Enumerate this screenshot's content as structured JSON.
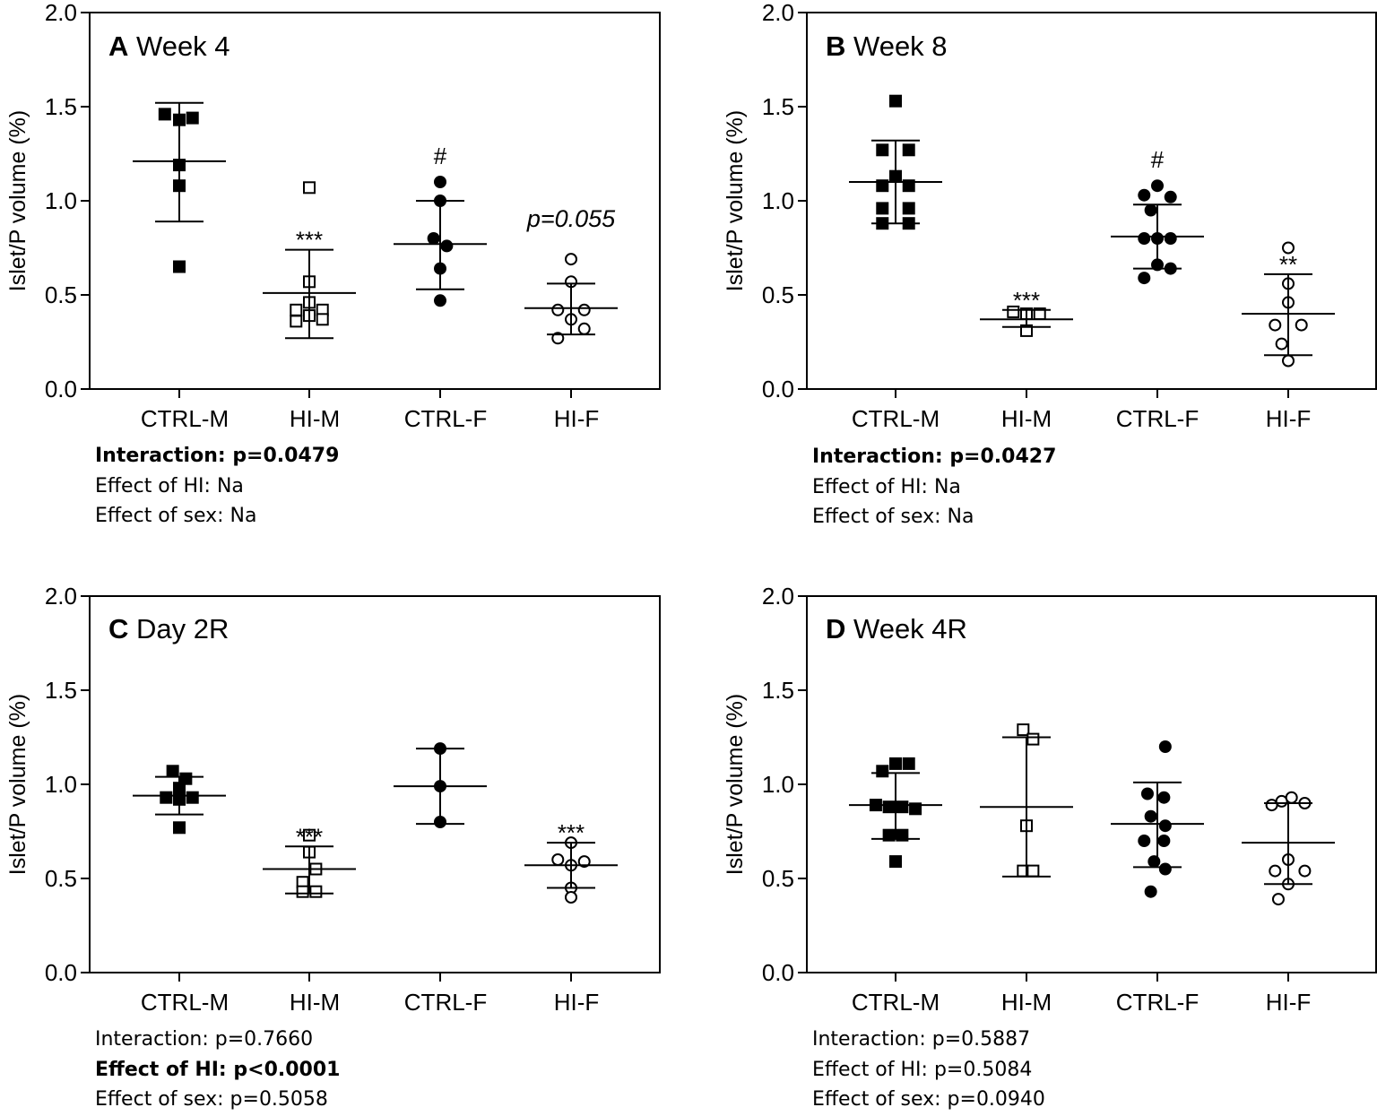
{
  "chart_data": [
    {
      "panel": "A",
      "type": "scatter",
      "title": "Week 4",
      "ylabel": "Islet/P volume (%)",
      "ylim": [
        0,
        2.0
      ],
      "yticks": [
        "0.0",
        "0.5",
        "1.0",
        "1.5",
        "2.0"
      ],
      "categories": [
        "CTRL-M",
        "HI-M",
        "CTRL-F",
        "HI-F"
      ],
      "series": [
        {
          "name": "CTRL-M",
          "marker": "square-filled",
          "points": [
            [
              -0.22,
              1.46
            ],
            [
              0,
              1.43
            ],
            [
              0.2,
              1.44
            ],
            [
              0,
              1.19
            ],
            [
              0,
              1.08
            ],
            [
              0,
              0.65
            ]
          ],
          "mean": 1.21,
          "sd_low": 0.89,
          "sd_high": 1.52,
          "annotation": ""
        },
        {
          "name": "HI-M",
          "marker": "square-open",
          "points": [
            [
              0,
              1.07
            ],
            [
              0,
              0.57
            ],
            [
              0,
              0.46
            ],
            [
              -0.2,
              0.42
            ],
            [
              0.2,
              0.42
            ],
            [
              -0.2,
              0.36
            ],
            [
              0,
              0.39
            ],
            [
              0.2,
              0.37
            ]
          ],
          "mean": 0.51,
          "sd_low": 0.27,
          "sd_high": 0.74,
          "annotation": "***"
        },
        {
          "name": "CTRL-F",
          "marker": "circle-filled",
          "points": [
            [
              0,
              1.1
            ],
            [
              0,
              1.0
            ],
            [
              -0.1,
              0.8
            ],
            [
              0.1,
              0.76
            ],
            [
              0,
              0.64
            ],
            [
              0,
              0.47
            ]
          ],
          "mean": 0.77,
          "sd_low": 0.53,
          "sd_high": 1.0,
          "annotation": "#"
        },
        {
          "name": "HI-F",
          "marker": "circle-open",
          "points": [
            [
              0,
              0.69
            ],
            [
              0,
              0.57
            ],
            [
              -0.2,
              0.42
            ],
            [
              0.2,
              0.42
            ],
            [
              0,
              0.37
            ],
            [
              -0.2,
              0.27
            ],
            [
              0.2,
              0.32
            ]
          ],
          "mean": 0.43,
          "sd_low": 0.29,
          "sd_high": 0.56,
          "annotation": "p=0.055"
        }
      ],
      "stats": [
        "Interaction: p=0.0479",
        "Effect of HI: Na",
        "Effect of sex: Na"
      ],
      "stats_bold": [
        true,
        false,
        false
      ]
    },
    {
      "panel": "B",
      "type": "scatter",
      "title": "Week 8",
      "ylabel": "Islet/P volume (%)",
      "ylim": [
        0,
        2.0
      ],
      "yticks": [
        "0.0",
        "0.5",
        "1.0",
        "1.5",
        "2.0"
      ],
      "categories": [
        "CTRL-M",
        "HI-M",
        "CTRL-F",
        "HI-F"
      ],
      "series": [
        {
          "name": "CTRL-M",
          "marker": "square-filled",
          "points": [
            [
              0,
              1.53
            ],
            [
              -0.2,
              1.27
            ],
            [
              0.2,
              1.27
            ],
            [
              0,
              1.13
            ],
            [
              -0.2,
              1.08
            ],
            [
              0.2,
              1.08
            ],
            [
              -0.2,
              0.96
            ],
            [
              0.2,
              0.96
            ],
            [
              -0.2,
              0.88
            ],
            [
              0.2,
              0.88
            ]
          ],
          "mean": 1.1,
          "sd_low": 0.88,
          "sd_high": 1.32,
          "annotation": ""
        },
        {
          "name": "HI-M",
          "marker": "square-open",
          "points": [
            [
              -0.2,
              0.41
            ],
            [
              0,
              0.4
            ],
            [
              0.2,
              0.4
            ],
            [
              0,
              0.31
            ]
          ],
          "mean": 0.37,
          "sd_low": 0.33,
          "sd_high": 0.42,
          "annotation": "***"
        },
        {
          "name": "CTRL-F",
          "marker": "circle-filled",
          "points": [
            [
              -0.2,
              1.03
            ],
            [
              0,
              1.08
            ],
            [
              0.2,
              1.02
            ],
            [
              -0.1,
              0.95
            ],
            [
              -0.2,
              0.8
            ],
            [
              0,
              0.8
            ],
            [
              0.2,
              0.8
            ],
            [
              0,
              0.66
            ],
            [
              0.2,
              0.64
            ],
            [
              -0.2,
              0.59
            ]
          ],
          "mean": 0.81,
          "sd_low": 0.64,
          "sd_high": 0.98,
          "annotation": "#"
        },
        {
          "name": "HI-F",
          "marker": "circle-open",
          "points": [
            [
              0,
              0.75
            ],
            [
              0,
              0.56
            ],
            [
              0,
              0.46
            ],
            [
              -0.2,
              0.34
            ],
            [
              0.2,
              0.34
            ],
            [
              -0.1,
              0.24
            ],
            [
              0,
              0.15
            ]
          ],
          "mean": 0.4,
          "sd_low": 0.18,
          "sd_high": 0.61,
          "annotation": "**"
        }
      ],
      "stats": [
        "Interaction: p=0.0427",
        "Effect of HI: Na",
        "Effect of sex: Na"
      ],
      "stats_bold": [
        true,
        false,
        false
      ]
    },
    {
      "panel": "C",
      "type": "scatter",
      "title": "Day 2R",
      "ylabel": "Islet/P volume (%)",
      "ylim": [
        0,
        2.0
      ],
      "yticks": [
        "0.0",
        "0.5",
        "1.0",
        "1.5",
        "2.0"
      ],
      "categories": [
        "CTRL-M",
        "HI-M",
        "CTRL-F",
        "HI-F"
      ],
      "series": [
        {
          "name": "CTRL-M",
          "marker": "square-filled",
          "points": [
            [
              -0.1,
              1.07
            ],
            [
              0.1,
              1.03
            ],
            [
              0,
              0.98
            ],
            [
              -0.2,
              0.93
            ],
            [
              0,
              0.92
            ],
            [
              0.2,
              0.93
            ],
            [
              0,
              0.77
            ]
          ],
          "mean": 0.94,
          "sd_low": 0.84,
          "sd_high": 1.04,
          "annotation": ""
        },
        {
          "name": "HI-M",
          "marker": "square-open",
          "points": [
            [
              0,
              0.73
            ],
            [
              0,
              0.64
            ],
            [
              0.1,
              0.55
            ],
            [
              -0.1,
              0.48
            ],
            [
              -0.1,
              0.43
            ],
            [
              0.1,
              0.43
            ]
          ],
          "mean": 0.55,
          "sd_low": 0.42,
          "sd_high": 0.67,
          "annotation": "***"
        },
        {
          "name": "CTRL-F",
          "marker": "circle-filled",
          "points": [
            [
              0,
              1.19
            ],
            [
              0,
              0.99
            ],
            [
              0,
              0.8
            ]
          ],
          "mean": 0.99,
          "sd_low": 0.79,
          "sd_high": 1.19,
          "annotation": ""
        },
        {
          "name": "HI-F",
          "marker": "circle-open",
          "points": [
            [
              0,
              0.69
            ],
            [
              -0.2,
              0.6
            ],
            [
              0.2,
              0.59
            ],
            [
              0,
              0.57
            ],
            [
              0,
              0.45
            ],
            [
              0,
              0.4
            ]
          ],
          "mean": 0.57,
          "sd_low": 0.45,
          "sd_high": 0.69,
          "annotation": "***"
        }
      ],
      "stats": [
        "Interaction: p=0.7660",
        "Effect of HI: p<0.0001",
        "Effect of sex: p=0.5058"
      ],
      "stats_bold": [
        false,
        true,
        false
      ]
    },
    {
      "panel": "D",
      "type": "scatter",
      "title": "Week 4R",
      "ylabel": "Islet/P volume (%)",
      "ylim": [
        0,
        2.0
      ],
      "yticks": [
        "0.0",
        "0.5",
        "1.0",
        "1.5",
        "2.0"
      ],
      "categories": [
        "CTRL-M",
        "HI-M",
        "CTRL-F",
        "HI-F"
      ],
      "series": [
        {
          "name": "CTRL-M",
          "marker": "square-filled",
          "points": [
            [
              -0.2,
              1.07
            ],
            [
              0,
              1.11
            ],
            [
              0.2,
              1.11
            ],
            [
              -0.3,
              0.89
            ],
            [
              -0.1,
              0.88
            ],
            [
              0.1,
              0.88
            ],
            [
              0.3,
              0.87
            ],
            [
              -0.1,
              0.73
            ],
            [
              0.1,
              0.73
            ],
            [
              0,
              0.59
            ]
          ],
          "mean": 0.89,
          "sd_low": 0.71,
          "sd_high": 1.06,
          "annotation": ""
        },
        {
          "name": "HI-M",
          "marker": "square-open",
          "points": [
            [
              -0.05,
              1.29
            ],
            [
              0.1,
              1.24
            ],
            [
              0,
              0.78
            ],
            [
              -0.05,
              0.54
            ],
            [
              0.1,
              0.54
            ]
          ],
          "mean": 0.88,
          "sd_low": 0.51,
          "sd_high": 1.25,
          "annotation": ""
        },
        {
          "name": "CTRL-F",
          "marker": "circle-filled",
          "points": [
            [
              0.12,
              1.2
            ],
            [
              -0.15,
              0.95
            ],
            [
              0.1,
              0.93
            ],
            [
              -0.1,
              0.83
            ],
            [
              0.12,
              0.78
            ],
            [
              -0.2,
              0.7
            ],
            [
              0.1,
              0.7
            ],
            [
              -0.05,
              0.59
            ],
            [
              0.12,
              0.55
            ],
            [
              -0.1,
              0.43
            ]
          ],
          "mean": 0.79,
          "sd_low": 0.56,
          "sd_high": 1.01,
          "annotation": ""
        },
        {
          "name": "HI-F",
          "marker": "circle-open",
          "points": [
            [
              -0.25,
              0.89
            ],
            [
              -0.1,
              0.91
            ],
            [
              0.05,
              0.93
            ],
            [
              0.25,
              0.9
            ],
            [
              0,
              0.6
            ],
            [
              -0.2,
              0.54
            ],
            [
              0.25,
              0.54
            ],
            [
              0,
              0.47
            ],
            [
              -0.15,
              0.39
            ]
          ],
          "mean": 0.69,
          "sd_low": 0.47,
          "sd_high": 0.9,
          "annotation": ""
        }
      ],
      "stats": [
        "Interaction: p=0.5887",
        "Effect of HI: p=0.5084",
        "Effect of sex: p=0.0940"
      ],
      "stats_bold": [
        false,
        false,
        false
      ]
    }
  ]
}
